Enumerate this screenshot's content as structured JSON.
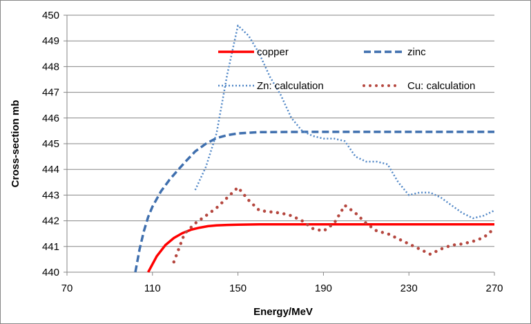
{
  "chart_data": {
    "type": "line",
    "title": "",
    "xlabel": "Energy/MeV",
    "ylabel": "Cross-section mb",
    "xlim": [
      70,
      270
    ],
    "ylim": [
      440,
      450
    ],
    "xticks": [
      70,
      110,
      150,
      190,
      230,
      270
    ],
    "yticks": [
      440,
      441,
      442,
      443,
      444,
      445,
      446,
      447,
      448,
      449,
      450
    ],
    "grid": "horizontal",
    "legend_position": "top-right",
    "series": [
      {
        "name": "copper",
        "color": "#ff0000",
        "style": "solid",
        "x": [
          108,
          112,
          116,
          120,
          124,
          128,
          132,
          136,
          140,
          145,
          150,
          160,
          180,
          200,
          230,
          270
        ],
        "y": [
          440.0,
          440.62,
          441.05,
          441.33,
          441.52,
          441.65,
          441.73,
          441.79,
          441.82,
          441.84,
          441.85,
          441.86,
          441.86,
          441.86,
          441.86,
          441.86
        ]
      },
      {
        "name": "zinc",
        "color": "#3f6fae",
        "style": "dashed",
        "x": [
          102,
          104,
          106,
          108,
          110,
          114,
          118,
          122,
          126,
          130,
          135,
          140,
          145,
          150,
          160,
          180,
          200,
          230,
          270
        ],
        "y": [
          440.0,
          440.9,
          441.6,
          442.15,
          442.55,
          443.15,
          443.6,
          443.98,
          444.35,
          444.7,
          445.0,
          445.22,
          445.33,
          445.4,
          445.45,
          445.46,
          445.46,
          445.46,
          445.46
        ]
      },
      {
        "name": "Zn: calculation",
        "color": "#4f86c6",
        "style": "dotted",
        "x": [
          130,
          135,
          140,
          145,
          150,
          155,
          160,
          165,
          170,
          175,
          180,
          185,
          190,
          195,
          200,
          205,
          210,
          215,
          220,
          225,
          230,
          235,
          240,
          245,
          250,
          255,
          260,
          265,
          270
        ],
        "y": [
          443.2,
          444.1,
          445.4,
          447.7,
          449.6,
          449.2,
          448.5,
          447.6,
          446.9,
          446.0,
          445.5,
          445.3,
          445.2,
          445.2,
          445.1,
          444.5,
          444.3,
          444.3,
          444.2,
          443.5,
          443.0,
          443.1,
          443.1,
          442.9,
          442.6,
          442.3,
          442.1,
          442.2,
          442.4
        ]
      },
      {
        "name": "Cu: calculation",
        "color": "#b5473f",
        "style": "round-dots",
        "x": [
          120,
          125,
          130,
          135,
          140,
          145,
          150,
          155,
          160,
          165,
          170,
          175,
          180,
          185,
          190,
          195,
          200,
          205,
          210,
          215,
          220,
          225,
          230,
          235,
          240,
          245,
          250,
          255,
          260,
          265,
          270
        ],
        "y": [
          440.4,
          441.5,
          441.9,
          442.2,
          442.5,
          442.9,
          443.3,
          442.8,
          442.4,
          442.35,
          442.3,
          442.2,
          442.0,
          441.7,
          441.6,
          441.9,
          442.6,
          442.3,
          441.9,
          441.6,
          441.5,
          441.3,
          441.1,
          440.9,
          440.7,
          440.9,
          441.05,
          441.1,
          441.2,
          441.35,
          441.7
        ]
      }
    ]
  }
}
